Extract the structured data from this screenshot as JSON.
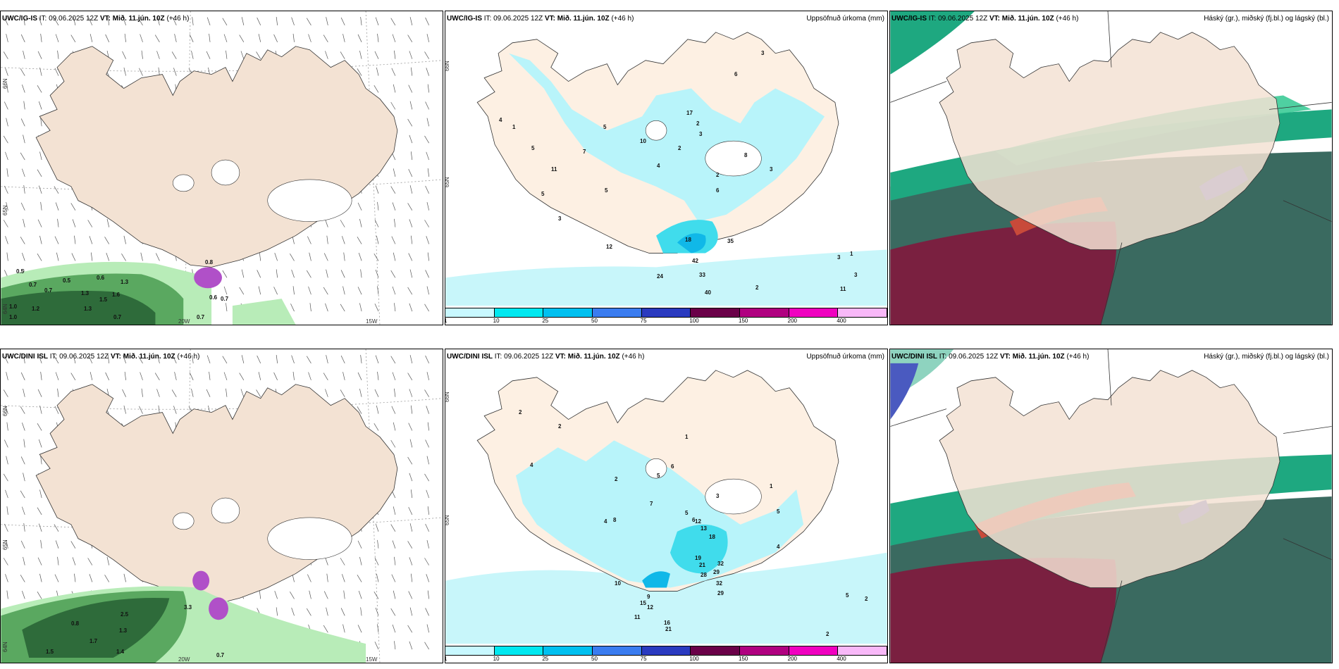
{
  "panels": {
    "p1": {
      "model": "UWC/IG-IS",
      "it": "IT: 09.06.2025 12Z",
      "vt_prefix": "VT:",
      "vt": "Mið. 11.jún. 10Z",
      "lead": "(+46 h)",
      "right": ""
    },
    "p2": {
      "model": "UWC/IG-IS",
      "it": "IT: 09.06.2025 12Z",
      "vt_prefix": "VT:",
      "vt": "Mið. 11.jún. 10Z",
      "lead": "(+46 h)",
      "right": "Uppsöfnuð úrkoma (mm)"
    },
    "p3": {
      "model": "UWC/IG-IS",
      "it": "IT: 09.06.2025 12Z",
      "vt_prefix": "VT:",
      "vt": "Mið. 11.jún. 10Z",
      "lead": "(+46 h)",
      "right": "Háský (gr.), miðský (fj.bl.) og lágský (bl.)"
    },
    "p4": {
      "model": "UWC/DINI ISL",
      "it": "IT: 09.06.2025 12Z",
      "vt_prefix": "VT:",
      "vt": "Mið. 11.jún. 10Z",
      "lead": "(+46 h)",
      "right": ""
    },
    "p5": {
      "model": "UWC/DINI ISL",
      "it": "IT: 09.06.2025 12Z",
      "vt_prefix": "VT:",
      "vt": "Mið. 11.jún. 10Z",
      "lead": "(+46 h)",
      "right": "Uppsöfnuð úrkoma (mm)"
    },
    "p6": {
      "model": "UWC/DINI ISL",
      "it": "IT: 09.06.2025 12Z",
      "vt_prefix": "VT:",
      "vt": "Mið. 11.jún. 10Z",
      "lead": "(+46 h)",
      "right": "Háský (gr.), miðský (fj.bl.) og lágský (bl.)"
    }
  },
  "axis_labels": {
    "lat66": "66N",
    "lat65": "65N",
    "lat64": "64N",
    "lon20": "20W",
    "lon15": "15W"
  },
  "colorbar": {
    "ticks": [
      "1",
      "10",
      "25",
      "50",
      "75",
      "100",
      "150",
      "200",
      "400"
    ],
    "colors": [
      "#c8f8ff",
      "#00e8f0",
      "#00c0f0",
      "#3a7cf0",
      "#2a3ac0",
      "#6a0048",
      "#b00080",
      "#f000c0",
      "#f8b8f8"
    ]
  },
  "colors": {
    "land": "#f3e2d3",
    "ice": "#ffffff",
    "precip_light": "#b8f4fa",
    "precip_mid": "#40dcec",
    "precip_high": "#10b8e8",
    "green_dark": "#2e6b3a",
    "green_mid": "#5aa860",
    "green_light": "#b8ecb8",
    "cloud_teal": "#1ea880",
    "cloud_dark": "#3a6a60",
    "cloud_maroon": "#7a2040",
    "cloud_red": "#c84a3a",
    "cloud_blue": "#4a5ac0",
    "purple": "#b050c8"
  },
  "p1_values": [
    "0.5",
    "0.7",
    "0.5",
    "0.6",
    "1.3",
    "1.0",
    "0.7",
    "1.3",
    "1.5",
    "1.6",
    "1.0",
    "1.2",
    "1.3",
    "0.7",
    "0.7",
    "0.6",
    "0.7",
    "0.8"
  ],
  "p4_values": [
    "0.8",
    "2.5",
    "1.7",
    "1.5",
    "1.4",
    "0.7",
    "1.3",
    "3.3"
  ],
  "p2_values": [
    "3",
    "6",
    "4",
    "5",
    "7",
    "1",
    "17",
    "2",
    "3",
    "5",
    "10",
    "2",
    "11",
    "8",
    "4",
    "2",
    "3",
    "18",
    "35",
    "42",
    "33",
    "40",
    "24",
    "12",
    "11",
    "3",
    "2",
    "3",
    "1",
    "6",
    "5",
    "5",
    "3"
  ],
  "p5_values": [
    "2",
    "2",
    "1",
    "4",
    "2",
    "6",
    "5",
    "7",
    "4",
    "5",
    "6",
    "12",
    "13",
    "8",
    "18",
    "19",
    "21",
    "32",
    "29",
    "32",
    "28",
    "21",
    "16",
    "29",
    "11",
    "12",
    "9",
    "10",
    "15",
    "4",
    "3",
    "1",
    "5",
    "5",
    "2",
    "2"
  ]
}
